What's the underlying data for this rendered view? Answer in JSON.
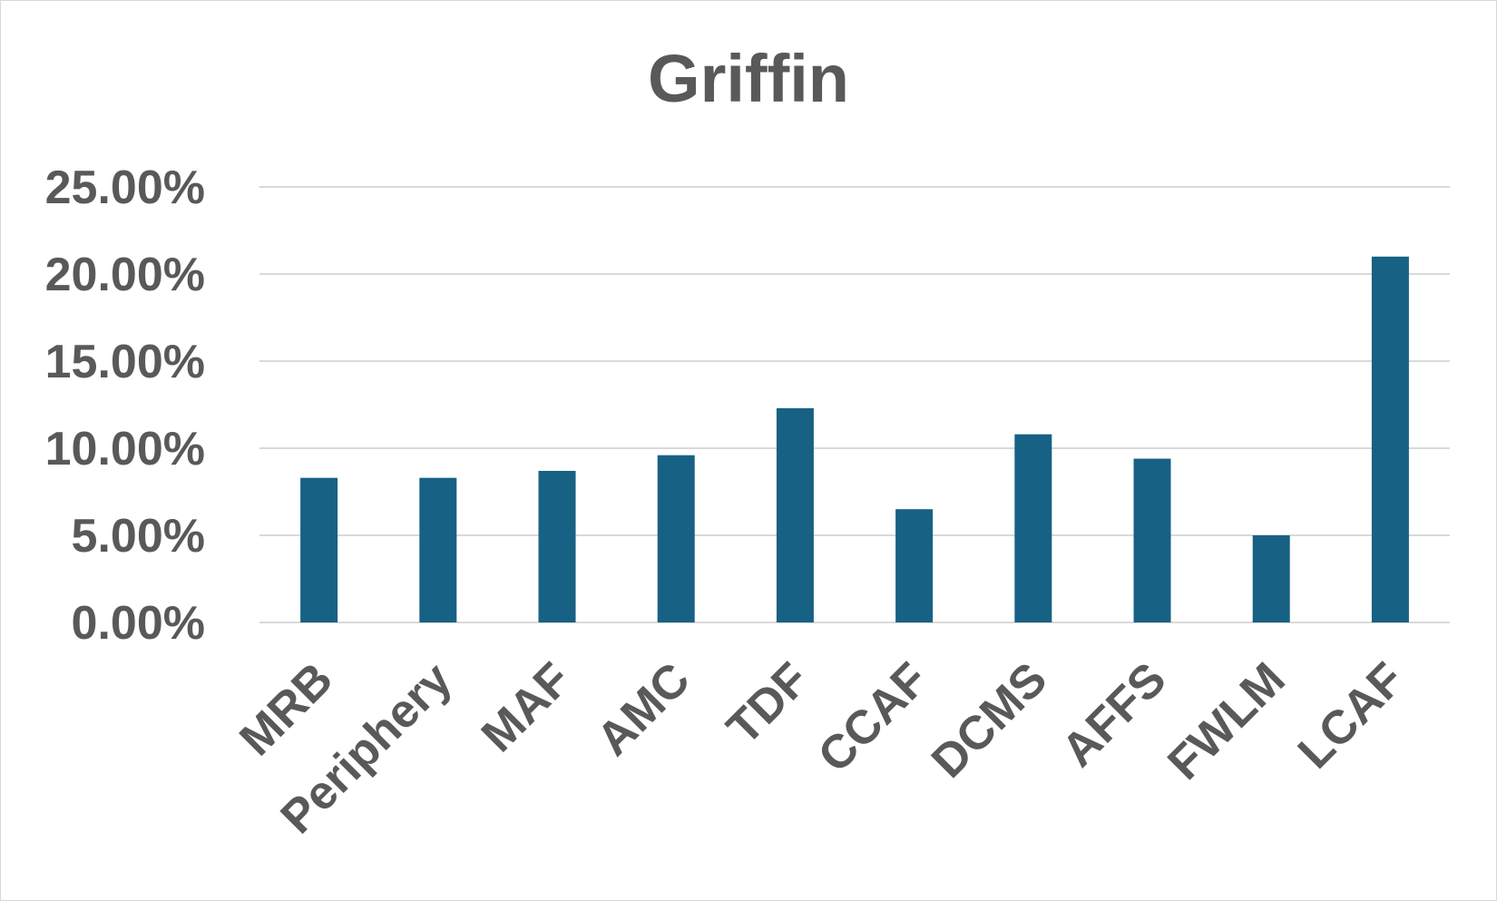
{
  "chart_data": {
    "type": "bar",
    "title": "Griffin",
    "xlabel": "",
    "ylabel": "",
    "categories": [
      "MRB",
      "Periphery",
      "MAF",
      "AMC",
      "TDF",
      "CCAF",
      "DCMS",
      "AFFS",
      "FWLM",
      "LCAF"
    ],
    "values": [
      8.3,
      8.3,
      8.7,
      9.6,
      12.3,
      6.5,
      10.8,
      9.4,
      5.0,
      21.0
    ],
    "ylim": [
      0,
      25
    ],
    "yticks": [
      0,
      5,
      10,
      15,
      20,
      25
    ],
    "ytick_labels": [
      "0.00%",
      "5.00%",
      "10.00%",
      "15.00%",
      "20.00%",
      "25.00%"
    ],
    "grid": true,
    "legend": "none",
    "colors": {
      "bar": "#176184",
      "text": "#595959",
      "grid": "#d9d9d9"
    }
  }
}
